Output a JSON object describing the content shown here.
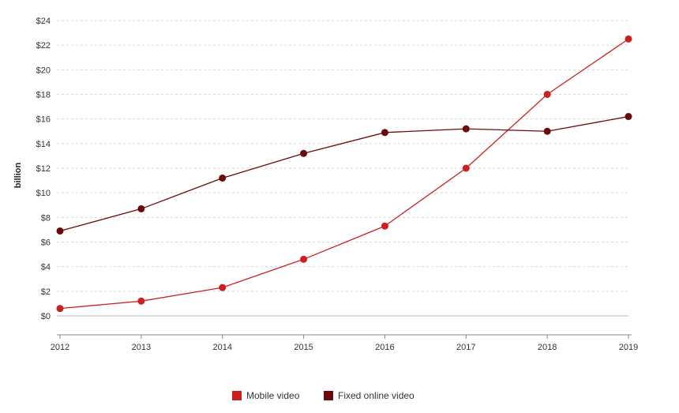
{
  "chart_data": {
    "type": "line",
    "title": "",
    "xlabel": "",
    "ylabel": "billion",
    "x": [
      "2012",
      "2013",
      "2014",
      "2015",
      "2016",
      "2017",
      "2018",
      "2019"
    ],
    "ylim": [
      0,
      24
    ],
    "yticks": [
      0,
      2,
      4,
      6,
      8,
      10,
      12,
      14,
      16,
      18,
      20,
      22,
      24
    ],
    "ytick_labels": [
      "$0",
      "$2",
      "$4",
      "$6",
      "$8",
      "$10",
      "$12",
      "$14",
      "$16",
      "$18",
      "$20",
      "$22",
      "$24"
    ],
    "grid": true,
    "legend_position": "bottom-center",
    "series": [
      {
        "name": "Mobile video",
        "color": "#cc1f1f",
        "values": [
          0.6,
          1.2,
          2.3,
          4.6,
          7.3,
          12.0,
          18.0,
          22.5
        ]
      },
      {
        "name": "Fixed online video",
        "color": "#6b0a0a",
        "values": [
          6.9,
          8.7,
          11.2,
          13.2,
          14.9,
          15.2,
          15.0,
          16.2
        ]
      }
    ]
  }
}
